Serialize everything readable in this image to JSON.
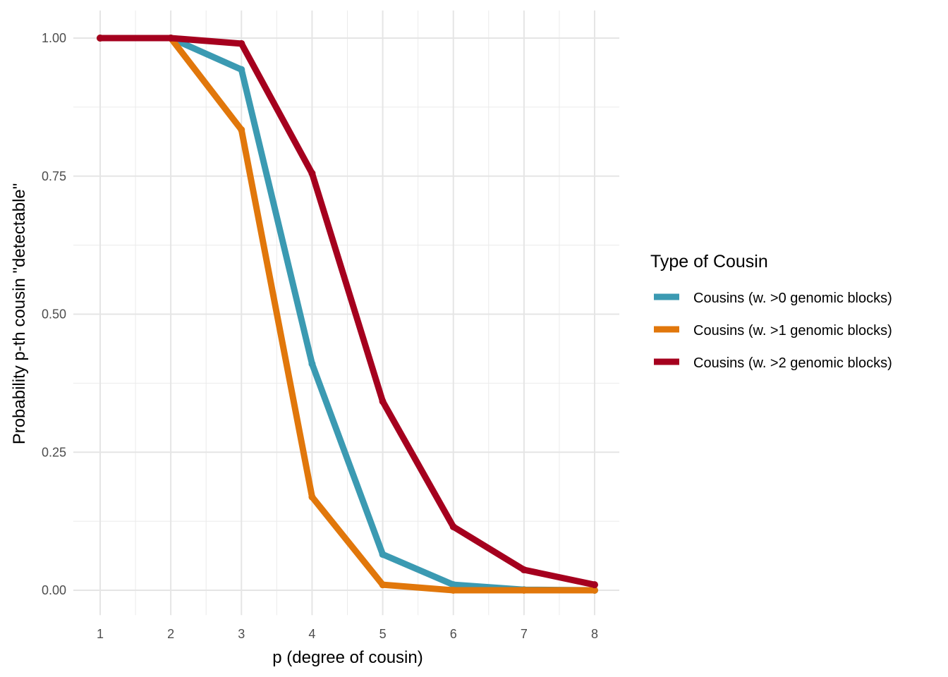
{
  "chart_data": {
    "type": "line",
    "title": "",
    "xlabel": "p (degree of cousin)",
    "ylabel": "Probability p-th cousin \"detectable\"",
    "x": [
      1,
      2,
      3,
      4,
      5,
      6,
      7,
      8
    ],
    "xlim": [
      0.62,
      8.35
    ],
    "ylim": [
      -0.045,
      1.05
    ],
    "xticks": [
      "1",
      "2",
      "3",
      "4",
      "5",
      "6",
      "7",
      "8"
    ],
    "yticks": [
      "0.00",
      "0.25",
      "0.50",
      "0.75",
      "1.00"
    ],
    "grid": true,
    "legend": {
      "title": "Type of Cousin",
      "placement": "right"
    },
    "series": [
      {
        "name": "Cousins (w. >0 genomic blocks)",
        "color": "#3B9AB2",
        "values": [
          1.0,
          1.0,
          0.943,
          0.41,
          0.065,
          0.01,
          0.001,
          0.0
        ]
      },
      {
        "name": "Cousins (w. >1 genomic blocks)",
        "color": "#E1770B",
        "values": [
          1.0,
          1.0,
          0.834,
          0.169,
          0.01,
          0.0,
          0.0,
          0.0
        ]
      },
      {
        "name": "Cousins (w. >2 genomic blocks)",
        "color": "#A5001E",
        "values": [
          1.0,
          1.0,
          0.99,
          0.755,
          0.342,
          0.115,
          0.037,
          0.01
        ]
      }
    ]
  }
}
